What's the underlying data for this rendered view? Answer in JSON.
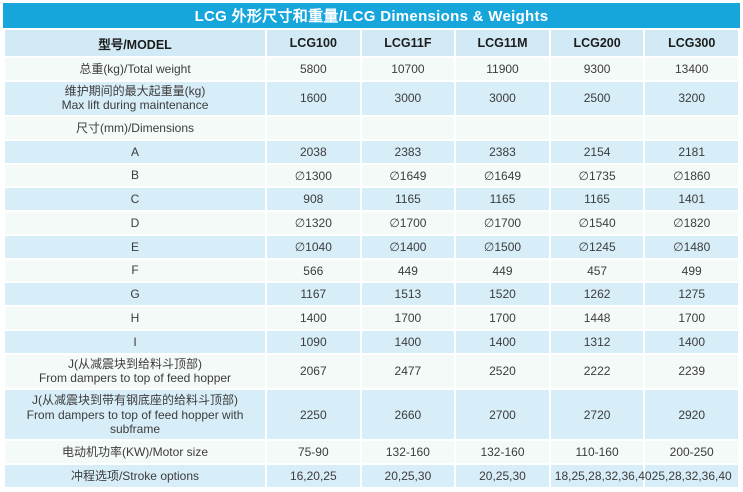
{
  "title": "LCG 外形尺寸和重量/LCG Dimensions & Weights",
  "colors": {
    "title_bar": "#16a6dc",
    "header_bg": "#d2eaf5",
    "row_blue": "#d7edf8",
    "row_pale": "#f4faf8",
    "text": "#3c3c3c"
  },
  "header": {
    "model_label": "型号/MODEL",
    "models": [
      "LCG100",
      "LCG11F",
      "LCG11M",
      "LCG200",
      "LCG300"
    ]
  },
  "rows": [
    {
      "label_lines": [
        "总重(kg)/Total weight"
      ],
      "values": [
        "5800",
        "10700",
        "11900",
        "9300",
        "13400"
      ]
    },
    {
      "label_lines": [
        "维护期间的最大起重量(kg)",
        "Max lift during maintenance"
      ],
      "values": [
        "1600",
        "3000",
        "3000",
        "2500",
        "3200"
      ]
    },
    {
      "label_lines": [
        "尺寸(mm)/Dimensions"
      ],
      "values": [
        "",
        "",
        "",
        "",
        ""
      ]
    },
    {
      "label_lines": [
        "A"
      ],
      "values": [
        "2038",
        "2383",
        "2383",
        "2154",
        "2181"
      ]
    },
    {
      "label_lines": [
        "B"
      ],
      "values": [
        "∅1300",
        "∅1649",
        "∅1649",
        "∅1735",
        "∅1860"
      ]
    },
    {
      "label_lines": [
        "C"
      ],
      "values": [
        "908",
        "1165",
        "1165",
        "1165",
        "1401"
      ]
    },
    {
      "label_lines": [
        "D"
      ],
      "values": [
        "∅1320",
        "∅1700",
        "∅1700",
        "∅1540",
        "∅1820"
      ]
    },
    {
      "label_lines": [
        "E"
      ],
      "values": [
        "∅1040",
        "∅1400",
        "∅1500",
        "∅1245",
        "∅1480"
      ]
    },
    {
      "label_lines": [
        "F"
      ],
      "values": [
        "566",
        "449",
        "449",
        "457",
        "499"
      ]
    },
    {
      "label_lines": [
        "G"
      ],
      "values": [
        "1167",
        "1513",
        "1520",
        "1262",
        "1275"
      ]
    },
    {
      "label_lines": [
        "H"
      ],
      "values": [
        "1400",
        "1700",
        "1700",
        "1448",
        "1700"
      ]
    },
    {
      "label_lines": [
        "I"
      ],
      "values": [
        "1090",
        "1400",
        "1400",
        "1312",
        "1400"
      ]
    },
    {
      "label_lines": [
        "J(从减震块到给料斗顶部)",
        "From dampers to top of feed hopper"
      ],
      "values": [
        "2067",
        "2477",
        "2520",
        "2222",
        "2239"
      ]
    },
    {
      "label_lines": [
        "J(从减震块到带有钢底座的给料斗顶部)",
        "From dampers to top of feed hopper with subframe"
      ],
      "values": [
        "2250",
        "2660",
        "2700",
        "2720",
        "2920"
      ]
    },
    {
      "label_lines": [
        "电动机功率(KW)/Motor size"
      ],
      "values": [
        "75-90",
        "132-160",
        "132-160",
        "110-160",
        "200-250"
      ]
    },
    {
      "label_lines": [
        "冲程选项/Stroke options"
      ],
      "values": [
        "16,20,25",
        "20,25,30",
        "20,25,30",
        "18,25,28,32,36,40",
        "25,28,32,36,40"
      ]
    }
  ]
}
